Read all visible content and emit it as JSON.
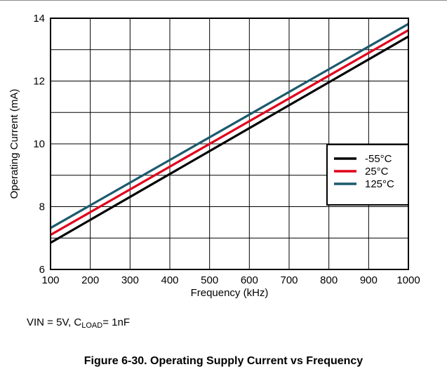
{
  "chart_data": {
    "type": "line",
    "xlabel": "Frequency (kHz)",
    "ylabel": "Operating Current (mA)",
    "xlim": [
      100,
      1000
    ],
    "ylim": [
      6,
      14
    ],
    "xticks": [
      100,
      200,
      300,
      400,
      500,
      600,
      700,
      800,
      900,
      1000
    ],
    "yticks": [
      6,
      8,
      10,
      12,
      14
    ],
    "grid": true,
    "legend_position": "right",
    "x": [
      100,
      1000
    ],
    "series": [
      {
        "name": "-55°C",
        "color": "#000000",
        "values": [
          6.85,
          13.42
        ]
      },
      {
        "name": "25°C",
        "color": "#e0001b",
        "values": [
          7.1,
          13.62
        ]
      },
      {
        "name": "125°C",
        "color": "#1d5a6e",
        "values": [
          7.32,
          13.82
        ]
      }
    ]
  },
  "conditions": {
    "prefix": "VIN = 5V, C",
    "subscript": "LOAD",
    "suffix": "= 1nF"
  },
  "caption": "Figure 6-30. Operating Supply Current vs Frequency"
}
